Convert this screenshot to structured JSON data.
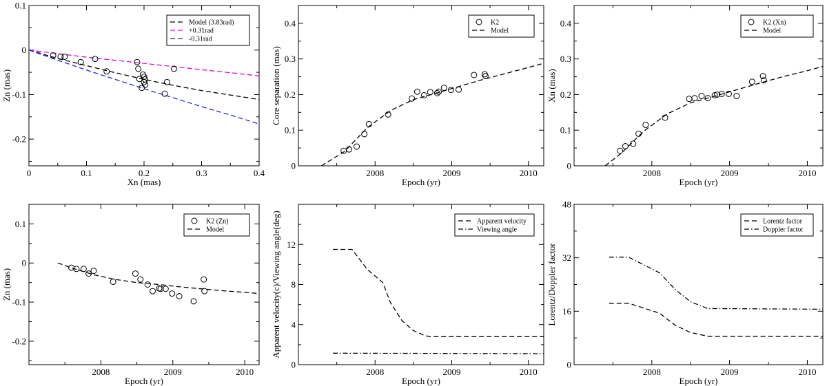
{
  "chart_data": [
    {
      "id": "p1",
      "type": "scatter",
      "xlabel": "Xn (mas)",
      "ylabel": "Zn (mas)",
      "xlim": [
        0,
        0.4
      ],
      "ylim": [
        -0.26,
        0.1
      ],
      "xticks": [
        0,
        0.1,
        0.2,
        0.3,
        0.4
      ],
      "xtick_labels": [
        "0",
        "0.1",
        "0.2",
        "0.3",
        "0.4"
      ],
      "yticks": [
        -0.2,
        -0.1,
        0,
        0.1
      ],
      "ytick_labels": [
        "-0.2",
        "-0.1",
        "0",
        "0.1"
      ],
      "xminor": [
        0.05,
        0.15,
        0.25,
        0.35
      ],
      "yminor": [
        -0.25,
        -0.15,
        -0.05,
        0.05
      ],
      "legend_position": "top-right",
      "series": [
        {
          "name": "Model (3.83rad)",
          "kind": "line",
          "style": "dash",
          "color": "#000000",
          "x": [
            0,
            0.05,
            0.1,
            0.15,
            0.2,
            0.25,
            0.3,
            0.35,
            0.4
          ],
          "y": [
            0,
            -0.019,
            -0.035,
            -0.051,
            -0.066,
            -0.079,
            -0.091,
            -0.101,
            -0.111
          ]
        },
        {
          "name": "+0.31rad",
          "kind": "line",
          "style": "dash",
          "color": "#e000e0",
          "x": [
            0,
            0.05,
            0.1,
            0.15,
            0.2,
            0.25,
            0.3,
            0.35,
            0.4
          ],
          "y": [
            0,
            -0.008,
            -0.016,
            -0.023,
            -0.03,
            -0.037,
            -0.044,
            -0.051,
            -0.058
          ]
        },
        {
          "name": "-0.31rad",
          "kind": "line",
          "style": "dash",
          "color": "#2020e0",
          "x": [
            0,
            0.05,
            0.1,
            0.15,
            0.2,
            0.25,
            0.3,
            0.35,
            0.4
          ],
          "y": [
            0,
            -0.023,
            -0.045,
            -0.066,
            -0.087,
            -0.107,
            -0.127,
            -0.146,
            -0.166
          ]
        },
        {
          "name": "K2 data",
          "kind": "points",
          "x": [
            0.042,
            0.055,
            0.062,
            0.09,
            0.115,
            0.135,
            0.188,
            0.19,
            0.192,
            0.196,
            0.198,
            0.2,
            0.2,
            0.202,
            0.202,
            0.236,
            0.24,
            0.252
          ],
          "y": [
            -0.012,
            -0.015,
            -0.015,
            -0.027,
            -0.02,
            -0.048,
            -0.027,
            -0.042,
            -0.065,
            -0.085,
            -0.055,
            -0.06,
            -0.072,
            -0.078,
            -0.066,
            -0.098,
            -0.072,
            -0.042
          ]
        }
      ]
    },
    {
      "id": "p2",
      "type": "scatter",
      "xlabel": "Epoch (yr)",
      "ylabel": "Core separation (mas)",
      "xlim": [
        2007.0,
        2010.2
      ],
      "ylim": [
        0,
        0.45
      ],
      "xticks": [
        2008,
        2009,
        2010
      ],
      "xtick_labels": [
        "2008",
        "2009",
        "2010"
      ],
      "yticks": [
        0,
        0.1,
        0.2,
        0.3,
        0.4
      ],
      "ytick_labels": [
        "0",
        "0.1",
        "0.2",
        "0.3",
        "0.4"
      ],
      "xminor": [
        2007.5,
        2008.5,
        2009.5
      ],
      "yminor": [
        0.05,
        0.15,
        0.25,
        0.35
      ],
      "legend_position": "top-right",
      "series": [
        {
          "name": "K2",
          "kind": "points",
          "x": [
            2007.59,
            2007.66,
            2007.76,
            2007.86,
            2007.92,
            2008.17,
            2008.48,
            2008.55,
            2008.64,
            2008.72,
            2008.81,
            2008.83,
            2008.9,
            2008.99,
            2009.09,
            2009.29,
            2009.43,
            2009.44
          ],
          "y": [
            0.042,
            0.046,
            0.054,
            0.089,
            0.117,
            0.144,
            0.189,
            0.208,
            0.198,
            0.207,
            0.204,
            0.208,
            0.219,
            0.213,
            0.214,
            0.255,
            0.257,
            0.252
          ]
        },
        {
          "name": "Model",
          "kind": "line",
          "style": "dash",
          "color": "#000000",
          "x": [
            2007.3,
            2007.6,
            2007.9,
            2008.2,
            2008.5,
            2008.8,
            2009.1,
            2009.4,
            2009.7,
            2010.0,
            2010.2
          ],
          "y": [
            0.0,
            0.04,
            0.107,
            0.155,
            0.186,
            0.204,
            0.223,
            0.242,
            0.259,
            0.276,
            0.288
          ]
        }
      ]
    },
    {
      "id": "p3",
      "type": "scatter",
      "xlabel": "Epoch (yr)",
      "ylabel": "Xn (mas)",
      "xlim": [
        2007.0,
        2010.2
      ],
      "ylim": [
        0,
        0.45
      ],
      "xticks": [
        2008,
        2009,
        2010
      ],
      "xtick_labels": [
        "2008",
        "2009",
        "2010"
      ],
      "yticks": [
        0,
        0.1,
        0.2,
        0.3,
        0.4
      ],
      "ytick_labels": [
        "0",
        "0.1",
        "0.2",
        "0.3",
        "0.4"
      ],
      "xminor": [
        2007.5,
        2008.5,
        2009.5
      ],
      "yminor": [
        0.05,
        0.15,
        0.25,
        0.35
      ],
      "legend_position": "top-right",
      "series": [
        {
          "name": "K2 (Xn)",
          "kind": "points",
          "x": [
            2007.59,
            2007.66,
            2007.76,
            2007.83,
            2007.92,
            2008.17,
            2008.48,
            2008.55,
            2008.64,
            2008.72,
            2008.81,
            2008.84,
            2008.9,
            2008.99,
            2009.09,
            2009.29,
            2009.43,
            2009.44
          ],
          "y": [
            0.042,
            0.055,
            0.062,
            0.09,
            0.115,
            0.135,
            0.188,
            0.19,
            0.196,
            0.19,
            0.198,
            0.2,
            0.202,
            0.202,
            0.196,
            0.236,
            0.252,
            0.24
          ]
        },
        {
          "name": "Model",
          "kind": "line",
          "style": "dash",
          "color": "#000000",
          "x": [
            2007.4,
            2007.6,
            2007.9,
            2008.2,
            2008.5,
            2008.8,
            2009.1,
            2009.4,
            2009.7,
            2010.0,
            2010.2
          ],
          "y": [
            0.0,
            0.034,
            0.098,
            0.146,
            0.177,
            0.195,
            0.214,
            0.233,
            0.251,
            0.267,
            0.279
          ]
        }
      ]
    },
    {
      "id": "p4",
      "type": "scatter",
      "xlabel": "Epoch (yr)",
      "ylabel": "Zn (mas)",
      "xlim": [
        2007.0,
        2010.2
      ],
      "ylim": [
        -0.26,
        0.15
      ],
      "xticks": [
        2008,
        2009,
        2010
      ],
      "xtick_labels": [
        "2008",
        "2009",
        "2010"
      ],
      "yticks": [
        -0.2,
        -0.1,
        0,
        0.1
      ],
      "ytick_labels": [
        "-0.2",
        "-0.1",
        "0",
        "0.1"
      ],
      "xminor": [
        2007.5,
        2008.5,
        2009.5
      ],
      "yminor": [
        -0.25,
        -0.15,
        -0.05,
        0.05
      ],
      "legend_position": "top-right",
      "series": [
        {
          "name": "K2 (Zn)",
          "kind": "points",
          "x": [
            2007.59,
            2007.66,
            2007.76,
            2007.83,
            2007.9,
            2008.17,
            2008.48,
            2008.55,
            2008.65,
            2008.72,
            2008.81,
            2008.83,
            2008.9,
            2008.99,
            2009.09,
            2009.29,
            2009.43,
            2009.44
          ],
          "y": [
            -0.012,
            -0.015,
            -0.015,
            -0.027,
            -0.02,
            -0.048,
            -0.027,
            -0.042,
            -0.055,
            -0.072,
            -0.065,
            -0.066,
            -0.066,
            -0.078,
            -0.085,
            -0.098,
            -0.042,
            -0.072
          ]
        },
        {
          "name": "Model",
          "kind": "line",
          "style": "dash",
          "color": "#000000",
          "x": [
            2007.4,
            2007.6,
            2007.9,
            2008.2,
            2008.5,
            2008.8,
            2009.1,
            2009.4,
            2009.7,
            2010.0,
            2010.2
          ],
          "y": [
            0.0,
            -0.013,
            -0.03,
            -0.042,
            -0.05,
            -0.055,
            -0.061,
            -0.066,
            -0.071,
            -0.075,
            -0.078
          ]
        }
      ]
    },
    {
      "id": "p5",
      "type": "line",
      "xlabel": "Epoch (yr)",
      "ylabel": "Apparent velocity(c)/Viewing angle(deg)",
      "xlim": [
        2007.0,
        2010.2
      ],
      "ylim": [
        0,
        16
      ],
      "xticks": [
        2008,
        2009,
        2010
      ],
      "xtick_labels": [
        "2008",
        "2009",
        "2010"
      ],
      "yticks": [
        0,
        4,
        8,
        12
      ],
      "ytick_labels": [
        "0",
        "4",
        "8",
        "12"
      ],
      "xminor": [
        2007.5,
        2008.5,
        2009.5
      ],
      "yminor": [
        2,
        6,
        10,
        14
      ],
      "legend_position": "top-right",
      "series": [
        {
          "name": "Apparent velocity",
          "kind": "line",
          "style": "dash",
          "color": "#000000",
          "x": [
            2007.45,
            2007.7,
            2007.9,
            2008.1,
            2008.2,
            2008.35,
            2008.5,
            2008.65,
            2008.72,
            2010.2
          ],
          "y": [
            11.5,
            11.5,
            9.5,
            8.2,
            6.2,
            4.4,
            3.4,
            2.9,
            2.8,
            2.8
          ]
        },
        {
          "name": "Viewing angle",
          "kind": "line",
          "style": "dashdot",
          "color": "#000000",
          "x": [
            2007.45,
            2010.2
          ],
          "y": [
            1.15,
            1.1
          ]
        }
      ]
    },
    {
      "id": "p6",
      "type": "line",
      "xlabel": "Epoch (yr)",
      "ylabel": "Lorentz/Doppler factor",
      "xlim": [
        2007.0,
        2010.2
      ],
      "ylim": [
        0,
        48
      ],
      "xticks": [
        2008,
        2009,
        2010
      ],
      "xtick_labels": [
        "2008",
        "2009",
        "2010"
      ],
      "yticks": [
        0,
        16,
        32,
        48
      ],
      "ytick_labels": [
        "0",
        "16",
        "32",
        "48"
      ],
      "xminor": [
        2007.5,
        2008.5,
        2009.5
      ],
      "yminor": [
        8,
        24,
        40
      ],
      "legend_position": "top-right",
      "series": [
        {
          "name": "Lorentz factor",
          "kind": "line",
          "style": "dash",
          "color": "#000000",
          "x": [
            2007.45,
            2007.7,
            2008.1,
            2008.3,
            2008.5,
            2008.72,
            2010.2
          ],
          "y": [
            18.4,
            18.4,
            15.4,
            11.8,
            9.6,
            8.5,
            8.5
          ]
        },
        {
          "name": "Doppler factor",
          "kind": "line",
          "style": "dashdot",
          "color": "#000000",
          "x": [
            2007.45,
            2007.7,
            2008.1,
            2008.3,
            2008.5,
            2008.72,
            2010.2
          ],
          "y": [
            32.2,
            32.2,
            27.5,
            22.5,
            18.8,
            16.8,
            16.6
          ]
        }
      ]
    }
  ]
}
